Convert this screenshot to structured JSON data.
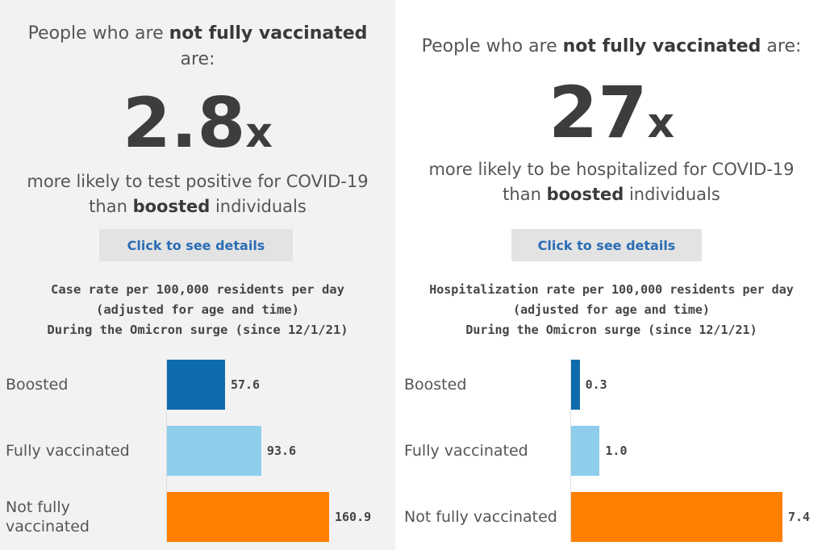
{
  "colors": {
    "boosted": "#0e6cad",
    "fully_vaccinated": "#8fcdec",
    "not_fully_vaccinated": "#ff8000",
    "button_text": "#2a6db5"
  },
  "left": {
    "headline_pre": "People who are ",
    "headline_bold": "not fully vaccinated",
    "headline_post": "are:",
    "big_number": "2.8",
    "big_suffix": "x",
    "sub_line1": "more likely to test positive for COVID-19",
    "sub_line2_pre": "than ",
    "sub_line2_bold": "boosted",
    "sub_line2_post": " individuals",
    "button_label": "Click to see details"
  },
  "right": {
    "headline_pre": "People who are ",
    "headline_bold": "not fully vaccinated",
    "headline_post": " are:",
    "big_number": "27",
    "big_suffix": "x",
    "sub_line1": "more likely to be hospitalized for COVID-19",
    "sub_line2_pre": "than ",
    "sub_line2_bold": "boosted",
    "sub_line2_post": " individuals",
    "button_label": "Click to see details"
  },
  "chart_data": [
    {
      "type": "bar",
      "orientation": "horizontal",
      "title_lines": [
        "Case rate per 100,000 residents per day",
        "(adjusted for age and time)",
        "During the Omicron surge (since 12/1/21)"
      ],
      "categories": [
        "Boosted",
        "Fully vaccinated",
        "Not fully vaccinated"
      ],
      "category_labels": [
        [
          "Boosted"
        ],
        [
          "Fully vaccinated"
        ],
        [
          "Not fully",
          "vaccinated"
        ]
      ],
      "values": [
        57.6,
        93.6,
        160.9
      ],
      "value_labels": [
        "57.6",
        "93.6",
        "160.9"
      ],
      "xlim": [
        0,
        160.9
      ],
      "grid": false
    },
    {
      "type": "bar",
      "orientation": "horizontal",
      "title_lines": [
        "Hospitalization rate per 100,000 residents per day",
        "(adjusted for age and time)",
        "During the Omicron surge (since 12/1/21)"
      ],
      "categories": [
        "Boosted",
        "Fully vaccinated",
        "Not fully vaccinated"
      ],
      "category_labels": [
        [
          "Boosted"
        ],
        [
          "Fully vaccinated"
        ],
        [
          "Not fully vaccinated"
        ]
      ],
      "values": [
        0.3,
        1.0,
        7.4
      ],
      "value_labels": [
        "0.3",
        "1.0",
        "7.4"
      ],
      "xlim": [
        0,
        7.4
      ],
      "grid": false
    }
  ]
}
